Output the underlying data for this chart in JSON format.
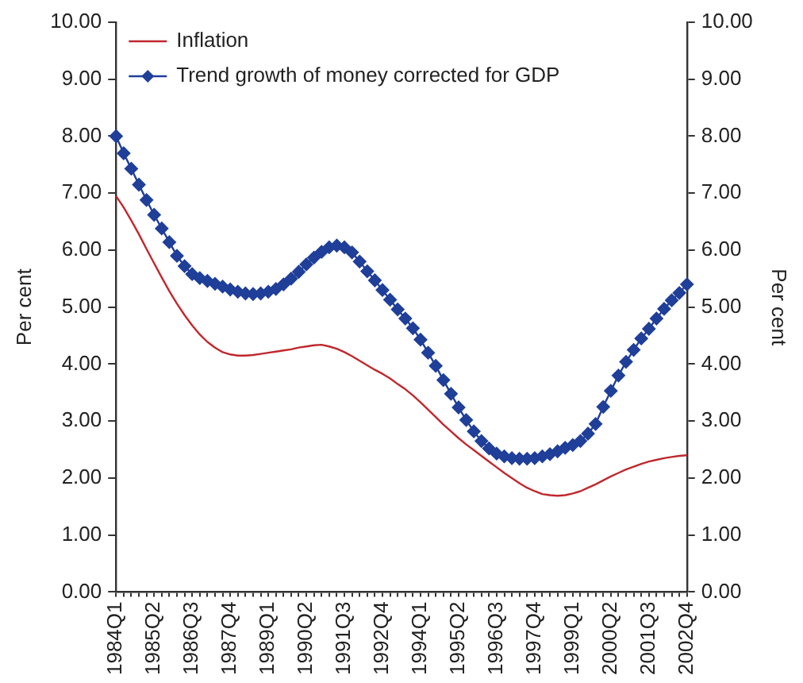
{
  "chart_data": {
    "type": "line",
    "categories": [
      "1984Q1",
      null,
      null,
      null,
      null,
      "1985Q2",
      null,
      null,
      null,
      null,
      "1986Q3",
      null,
      null,
      null,
      null,
      "1987Q4",
      null,
      null,
      null,
      null,
      "1989Q1",
      null,
      null,
      null,
      null,
      "1990Q2",
      null,
      null,
      null,
      null,
      "1991Q3",
      null,
      null,
      null,
      null,
      "1992Q4",
      null,
      null,
      null,
      null,
      "1994Q1",
      null,
      null,
      null,
      null,
      "1995Q2",
      null,
      null,
      null,
      null,
      "1996Q3",
      null,
      null,
      null,
      null,
      "1997Q4",
      null,
      null,
      null,
      null,
      "1999Q1",
      null,
      null,
      null,
      null,
      "2000Q2",
      null,
      null,
      null,
      null,
      "2001Q3",
      null,
      null,
      null,
      null,
      "2002Q4"
    ],
    "series": [
      {
        "name": "Inflation",
        "color": "#c0282d",
        "marker": "none",
        "values": [
          6.95,
          6.75,
          6.52,
          6.28,
          6.02,
          5.77,
          5.52,
          5.28,
          5.06,
          4.86,
          4.68,
          4.52,
          4.39,
          4.29,
          4.21,
          4.17,
          4.15,
          4.15,
          4.16,
          4.18,
          4.2,
          4.22,
          4.24,
          4.26,
          4.29,
          4.31,
          4.33,
          4.34,
          4.31,
          4.27,
          4.21,
          4.14,
          4.06,
          3.98,
          3.9,
          3.83,
          3.75,
          3.65,
          3.56,
          3.45,
          3.33,
          3.2,
          3.07,
          2.94,
          2.82,
          2.7,
          2.59,
          2.49,
          2.39,
          2.29,
          2.19,
          2.09,
          2.0,
          1.91,
          1.83,
          1.77,
          1.72,
          1.7,
          1.69,
          1.7,
          1.73,
          1.77,
          1.83,
          1.89,
          1.96,
          2.03,
          2.09,
          2.15,
          2.2,
          2.25,
          2.29,
          2.32,
          2.35,
          2.37,
          2.39,
          2.4
        ]
      },
      {
        "name": "Trend growth of money corrected for GDP",
        "color": "#1f3f99",
        "marker": "diamond",
        "values": [
          8.0,
          7.7,
          7.43,
          7.15,
          6.88,
          6.62,
          6.38,
          6.14,
          5.9,
          5.72,
          5.58,
          5.51,
          5.46,
          5.41,
          5.36,
          5.31,
          5.27,
          5.24,
          5.23,
          5.24,
          5.27,
          5.32,
          5.4,
          5.5,
          5.62,
          5.75,
          5.87,
          5.97,
          6.05,
          6.08,
          6.05,
          5.96,
          5.8,
          5.63,
          5.47,
          5.3,
          5.13,
          4.96,
          4.8,
          4.63,
          4.43,
          4.2,
          3.97,
          3.72,
          3.48,
          3.24,
          3.02,
          2.82,
          2.65,
          2.52,
          2.43,
          2.38,
          2.35,
          2.34,
          2.34,
          2.35,
          2.38,
          2.42,
          2.47,
          2.53,
          2.58,
          2.65,
          2.78,
          2.95,
          3.25,
          3.53,
          3.8,
          4.04,
          4.25,
          4.45,
          4.62,
          4.8,
          4.97,
          5.12,
          5.25,
          5.4
        ]
      }
    ],
    "ylabel": "Per cent",
    "y2label": "Per cent",
    "ylim": [
      0,
      10
    ],
    "yticks": [
      {
        "value": 0,
        "label": "0.00"
      },
      {
        "value": 1,
        "label": "1.00"
      },
      {
        "value": 2,
        "label": "2.00"
      },
      {
        "value": 3,
        "label": "3.00"
      },
      {
        "value": 4,
        "label": "4.00"
      },
      {
        "value": 5,
        "label": "5.00"
      },
      {
        "value": 6,
        "label": "6.00"
      },
      {
        "value": 7,
        "label": "7.00"
      },
      {
        "value": 8,
        "label": "8.00"
      },
      {
        "value": 9,
        "label": "9.00"
      },
      {
        "value": 10,
        "label": "10.00"
      }
    ],
    "y2lim": [
      0,
      10
    ],
    "y2ticks": [
      {
        "value": 0,
        "label": "0.00"
      },
      {
        "value": 1,
        "label": "1.00"
      },
      {
        "value": 2,
        "label": "2.00"
      },
      {
        "value": 3,
        "label": "3.00"
      },
      {
        "value": 4,
        "label": "4.00"
      },
      {
        "value": 5,
        "label": "5.00"
      },
      {
        "value": 6,
        "label": "6.00"
      },
      {
        "value": 7,
        "label": "7.00"
      },
      {
        "value": 8,
        "label": "8.00"
      },
      {
        "value": 9,
        "label": "9.00"
      },
      {
        "value": 10,
        "label": "10.00"
      }
    ],
    "grid": false,
    "legend": "top left",
    "line_style": "solid"
  }
}
